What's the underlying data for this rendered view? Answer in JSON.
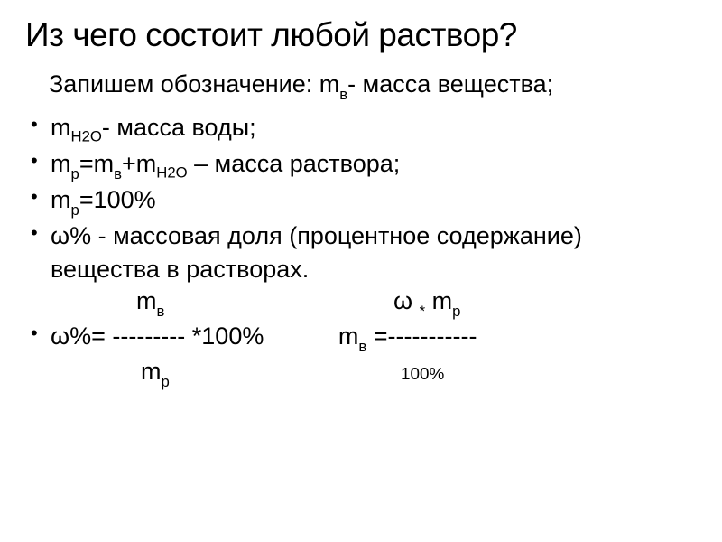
{
  "title": "Из чего состоит любой раствор?",
  "intro_prefix": "Запишем обозначение:  m",
  "intro_sub": "в",
  "intro_suffix": "- масса вещества;",
  "b1_prefix": "m",
  "b1_sub": "H2O",
  "b1_suffix": "- масса воды;",
  "b2_a": "m",
  "b2_a_sub": "р",
  "b2_b": "=m",
  "b2_b_sub": "в",
  "b2_c": "+m",
  "b2_c_sub": "H2O",
  "b2_d": " – масса раствора;",
  "b3_a": "m",
  "b3_a_sub": "р",
  "b3_b": "=100%",
  "b4": "ω% - массовая доля (процентное содержание)  вещества в   растворах.",
  "fr_top_left_a": "m",
  "fr_top_left_sub": "в",
  "fr_top_right_a": "ω ",
  "fr_top_right_star": "*",
  "fr_top_right_b": " m",
  "fr_top_right_sub": "р",
  "b5_a": "ω%= --------- *100%",
  "b5_spacer": "           ",
  "b5_b": "m",
  "b5_b_sub": "в",
  "b5_c": " =-----------",
  "fr_bot_left_a": "m",
  "fr_bot_left_sub": "р",
  "fr_bot_right": "100%",
  "colors": {
    "background": "#ffffff",
    "text": "#000000"
  },
  "fonts": {
    "title_size_pt": 28,
    "body_size_pt": 20,
    "family": "Arial"
  }
}
